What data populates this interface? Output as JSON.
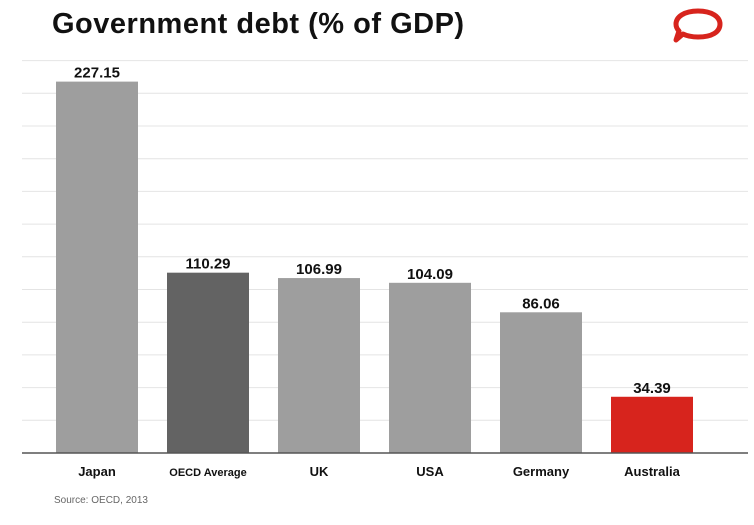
{
  "title": "Government debt (% of GDP)",
  "source": "Source: OECD, 2013",
  "logo_icon": "speech-bubble-logo-icon",
  "colors": {
    "default_bar": "#9e9e9e",
    "average_bar": "#636363",
    "highlight_bar": "#d7241d",
    "gridline": "#e4e4e4",
    "axis": "#555555",
    "logo": "#d7241d"
  },
  "chart_data": {
    "type": "bar",
    "title": "Government debt (% of GDP)",
    "xlabel": "",
    "ylabel": "",
    "categories": [
      "Japan",
      "OECD Average",
      "UK",
      "USA",
      "Germany",
      "Australia"
    ],
    "values": [
      227.15,
      110.29,
      106.99,
      104.09,
      86.06,
      34.39
    ],
    "data_labels": [
      "227.15",
      "110.29",
      "106.99",
      "104.09",
      "86.06",
      "34.39"
    ],
    "bar_colors": [
      "#9e9e9e",
      "#636363",
      "#9e9e9e",
      "#9e9e9e",
      "#9e9e9e",
      "#d7241d"
    ],
    "ylim": [
      0,
      240
    ],
    "grid": true,
    "legend": "none"
  }
}
